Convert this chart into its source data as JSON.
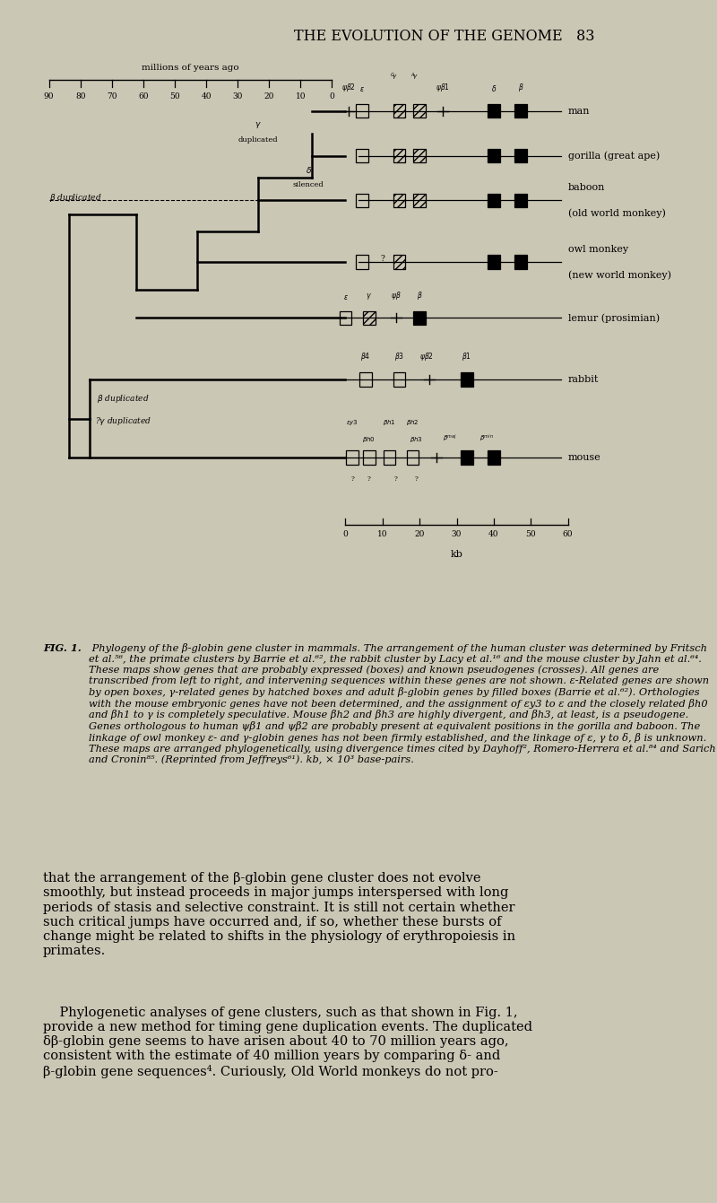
{
  "bg_color": "#cbc7b5",
  "title": "THE EVOLUTION OF THE GENOME   83",
  "body_text_1": "that the arrangement of the β-globin gene cluster does not evolve\nsmoothly, but instead proceeds in major jumps interspersed with long\nperiods of stasis and selective constraint. It is still not certain whether\nsuch critical jumps have occurred and, if so, whether these bursts of\nchange might be related to shifts in the physiology of erythropoiesis in\nprimates.",
  "body_text_2": "    Phylogenetic analyses of gene clusters, such as that shown in Fig. 1,\nprovide a new method for timing gene duplication events. The duplicated\nδβ-globin gene seems to have arisen about 40 to 70 million years ago,\nconsistent with the estimate of 40 million years by comparing δ- and\nβ-globin gene sequences⁴. Curiously, Old World monkeys do not pro-",
  "caption_bold": "FIG. 1.",
  "caption_italic": " Phylogeny of the β-globin gene cluster in mammals. The arrangement of the human cluster was determined by Fritsch et al.⁵⁶, the primate clusters by Barrie et al.⁶², the rabbit cluster by Lacy et al.¹⁶ and the mouse cluster by Jahn et al.⁶⁴. These maps show genes that are probably expressed (boxes) and known pseudogenes (crosses). All genes are transcribed from left to right, and intervening sequences within these genes are not shown. ε-Related genes are shown by open boxes, γ-related genes by hatched boxes and adult β-globin genes by filled boxes (Barrie et al.⁶²). Orthologies with the mouse embryonic genes have not been determined, and the assignment of εy3 to ε and the closely related βh0 and βh1 to γ is completely speculative. Mouse βh2 and βh3 are highly divergent, and βh3, at least, is a pseudogene. Genes orthologous to human ψβ1 and ψβ2 are probably present at equivalent positions in the gorilla and baboon. The linkage of owl monkey ε- and γ-globin genes has not been firmly established, and the linkage of ε, γ to δ, β is unknown. These maps are arranged phylogenetically, using divergence times cited by Dayhoff², Romero-Herrera et al.⁸⁴ and Sarich and Cronin⁸⁵. (Reprinted from Jeffreys⁶¹). kb, × 10³ base-pairs."
}
